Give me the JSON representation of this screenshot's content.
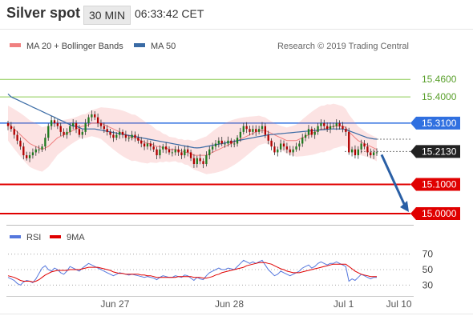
{
  "header": {
    "title": "Silver spot",
    "interval": "30 MIN",
    "time": "06:33:42 CET"
  },
  "legend": {
    "ma_bb": "MA 20 + Bollinger Bands",
    "ma50": "MA 50",
    "credit": "Research © 2019 Trading Central"
  },
  "rsi_legend": {
    "rsi": "RSI",
    "ma": "9MA"
  },
  "colors": {
    "bollinger": "#f08080",
    "ma50": "#3a6ba5",
    "support": "#e00000",
    "resistance": "#8ccc50",
    "pivot": "#3070e0",
    "last": "#222222",
    "rsi": "#5577dd",
    "rsi_ma": "#e00000",
    "target_arrow": "#2a5fa5",
    "candle_up": "#1f7a1f",
    "candle_down": "#b00000"
  },
  "chart_data": [
    {
      "type": "candlestick",
      "title": "Silver spot",
      "x_labels": [
        "Jun 27",
        "Jun 28",
        "Jul 1",
        "Jul 10"
      ],
      "y_ticks": [
        "15.4600",
        "15.4000",
        "15.3100",
        "15.2130",
        "15.1000",
        "15.0000"
      ],
      "ylim": [
        14.97,
        15.54
      ],
      "levels": [
        {
          "label": "15.4600",
          "value": 15.46,
          "kind": "resistance"
        },
        {
          "label": "15.4000",
          "value": 15.4,
          "kind": "resistance"
        },
        {
          "label": "15.3100",
          "value": 15.31,
          "kind": "pivot"
        },
        {
          "label": "15.2130",
          "value": 15.213,
          "kind": "last"
        },
        {
          "label": "15.1000",
          "value": 15.1,
          "kind": "support"
        },
        {
          "label": "15.0000",
          "value": 15.0,
          "kind": "support"
        }
      ],
      "close": [
        15.3,
        15.29,
        15.27,
        15.25,
        15.23,
        15.2,
        15.19,
        15.2,
        15.21,
        15.22,
        15.22,
        15.23,
        15.26,
        15.3,
        15.32,
        15.31,
        15.3,
        15.28,
        15.27,
        15.28,
        15.3,
        15.31,
        15.29,
        15.27,
        15.28,
        15.31,
        15.33,
        15.34,
        15.33,
        15.31,
        15.3,
        15.29,
        15.28,
        15.27,
        15.26,
        15.27,
        15.28,
        15.27,
        15.26,
        15.26,
        15.27,
        15.26,
        15.25,
        15.24,
        15.23,
        15.24,
        15.23,
        15.22,
        15.2,
        15.22,
        15.23,
        15.22,
        15.21,
        15.21,
        15.22,
        15.21,
        15.2,
        15.22,
        15.21,
        15.19,
        15.17,
        15.19,
        15.18,
        15.17,
        15.2,
        15.22,
        15.23,
        15.24,
        15.25,
        15.24,
        15.24,
        15.25,
        15.24,
        15.24,
        15.26,
        15.28,
        15.3,
        15.29,
        15.28,
        15.29,
        15.28,
        15.29,
        15.3,
        15.27,
        15.25,
        15.23,
        15.21,
        15.22,
        15.24,
        15.23,
        15.22,
        15.21,
        15.22,
        15.23,
        15.24,
        15.26,
        15.27,
        15.29,
        15.27,
        15.28,
        15.3,
        15.31,
        15.3,
        15.29,
        15.3,
        15.3,
        15.31,
        15.3,
        15.29,
        15.28,
        15.21,
        15.22,
        15.2,
        15.22,
        15.24,
        15.23,
        15.21,
        15.2,
        15.21,
        15.21
      ],
      "ma20": [
        15.31,
        15.3,
        15.29,
        15.28,
        15.27,
        15.26,
        15.25,
        15.24,
        15.235,
        15.23,
        15.225,
        15.22,
        15.225,
        15.23,
        15.24,
        15.25,
        15.26,
        15.265,
        15.27,
        15.275,
        15.28,
        15.285,
        15.29,
        15.295,
        15.3,
        15.3,
        15.305,
        15.31,
        15.31,
        15.31,
        15.31,
        15.305,
        15.3,
        15.295,
        15.29,
        15.285,
        15.28,
        15.275,
        15.27,
        15.265,
        15.26,
        15.26,
        15.255,
        15.25,
        15.245,
        15.24,
        15.24,
        15.235,
        15.23,
        15.23,
        15.225,
        15.225,
        15.22,
        15.22,
        15.22,
        15.215,
        15.215,
        15.21,
        15.21,
        15.205,
        15.2,
        15.2,
        15.2,
        15.2,
        15.2,
        15.205,
        15.21,
        15.215,
        15.22,
        15.225,
        15.23,
        15.235,
        15.24,
        15.245,
        15.25,
        15.255,
        15.26,
        15.265,
        15.27,
        15.275,
        15.28,
        15.285,
        15.285,
        15.285,
        15.28,
        15.275,
        15.27,
        15.265,
        15.26,
        15.255,
        15.25,
        15.25,
        15.25,
        15.25,
        15.255,
        15.26,
        15.265,
        15.27,
        15.275,
        15.28,
        15.285,
        15.29,
        15.29,
        15.295,
        15.295,
        15.3,
        15.3,
        15.3,
        15.3,
        15.295,
        15.28,
        15.27,
        15.26,
        15.25,
        15.245,
        15.24,
        15.235,
        15.23,
        15.225,
        15.22
      ],
      "ma50": [
        15.41,
        15.4,
        15.395,
        15.39,
        15.385,
        15.38,
        15.375,
        15.37,
        15.365,
        15.36,
        15.355,
        15.35,
        15.345,
        15.34,
        15.335,
        15.33,
        15.325,
        15.32,
        15.315,
        15.31,
        15.305,
        15.3,
        15.3,
        15.295,
        15.29,
        15.29,
        15.29,
        15.29,
        15.29,
        15.288,
        15.286,
        15.284,
        15.282,
        15.28,
        15.278,
        15.276,
        15.274,
        15.272,
        15.27,
        15.268,
        15.266,
        15.264,
        15.262,
        15.26,
        15.258,
        15.256,
        15.254,
        15.252,
        15.25,
        15.248,
        15.246,
        15.244,
        15.242,
        15.24,
        15.238,
        15.236,
        15.234,
        15.232,
        15.23,
        15.228,
        15.226,
        15.225,
        15.226,
        15.228,
        15.23,
        15.232,
        15.234,
        15.236,
        15.238,
        15.24,
        15.242,
        15.244,
        15.246,
        15.248,
        15.25,
        15.252,
        15.254,
        15.256,
        15.258,
        15.26,
        15.262,
        15.264,
        15.266,
        15.268,
        15.27,
        15.271,
        15.272,
        15.273,
        15.274,
        15.275,
        15.276,
        15.277,
        15.278,
        15.279,
        15.28,
        15.281,
        15.282,
        15.283,
        15.284,
        15.285,
        15.286,
        15.287,
        15.288,
        15.289,
        15.29,
        15.29,
        15.29,
        15.29,
        15.29,
        15.288,
        15.284,
        15.28,
        15.276,
        15.272,
        15.268,
        15.264,
        15.26,
        15.258,
        15.256,
        15.255
      ],
      "rsi": {
        "ticks": [
          "70",
          "50",
          "30"
        ],
        "ylim": [
          20,
          80
        ],
        "rsi": [
          40,
          38,
          36,
          32,
          30,
          34,
          36,
          35,
          33,
          38,
          45,
          52,
          55,
          50,
          48,
          52,
          50,
          46,
          44,
          48,
          54,
          52,
          50,
          48,
          52,
          55,
          58,
          56,
          54,
          52,
          50,
          48,
          46,
          44,
          42,
          44,
          46,
          45,
          44,
          43,
          44,
          43,
          42,
          41,
          40,
          41,
          40,
          39,
          37,
          40,
          42,
          41,
          40,
          40,
          42,
          41,
          40,
          43,
          42,
          39,
          36,
          40,
          38,
          37,
          42,
          46,
          48,
          50,
          52,
          50,
          50,
          52,
          51,
          50,
          54,
          58,
          62,
          60,
          58,
          60,
          58,
          60,
          62,
          56,
          50,
          46,
          42,
          44,
          48,
          46,
          44,
          42,
          44,
          46,
          48,
          52,
          54,
          56,
          52,
          54,
          58,
          60,
          58,
          56,
          58,
          58,
          60,
          58,
          56,
          54,
          35,
          38,
          36,
          40,
          44,
          42,
          40,
          38,
          40,
          40
        ],
        "ma9": [
          42,
          41,
          40,
          38,
          36,
          35,
          35,
          35,
          34,
          35,
          37,
          40,
          43,
          45,
          47,
          48,
          49,
          49,
          49,
          49,
          50,
          50,
          50,
          50,
          51,
          52,
          53,
          53,
          53,
          53,
          52,
          51,
          50,
          49,
          47,
          46,
          45,
          45,
          44,
          44,
          44,
          44,
          44,
          43,
          43,
          42,
          42,
          41,
          40,
          40,
          40,
          40,
          40,
          40,
          40,
          41,
          41,
          41,
          41,
          41,
          40,
          40,
          40,
          39,
          39,
          40,
          41,
          43,
          44,
          46,
          47,
          48,
          49,
          50,
          51,
          52,
          53,
          55,
          56,
          57,
          58,
          59,
          59,
          59,
          58,
          57,
          55,
          53,
          51,
          50,
          48,
          47,
          46,
          46,
          46,
          47,
          48,
          49,
          50,
          51,
          52,
          53,
          54,
          55,
          56,
          57,
          57,
          57,
          57,
          57,
          54,
          51,
          48,
          46,
          44,
          43,
          42,
          41,
          41,
          41
        ]
      }
    }
  ]
}
